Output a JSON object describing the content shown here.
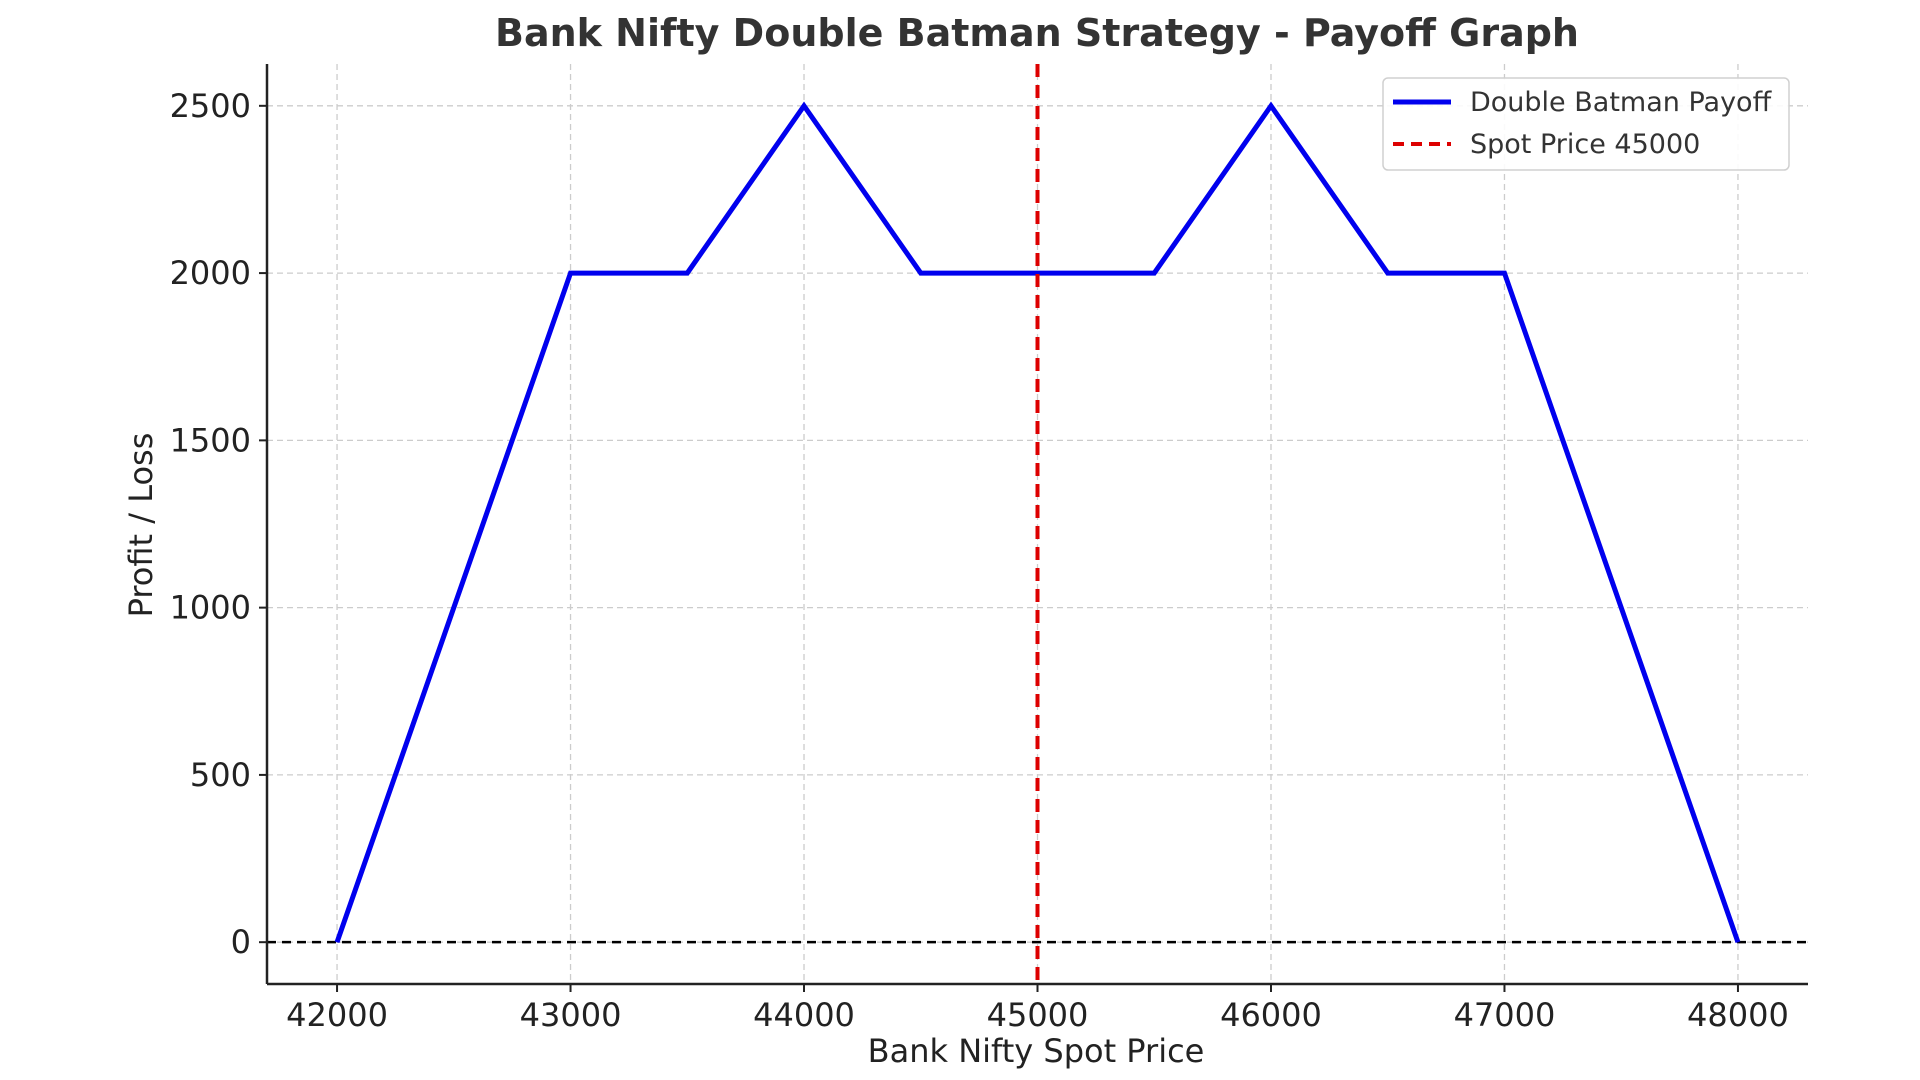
{
  "chart_data": {
    "type": "line",
    "title": "Bank Nifty Double Batman Strategy - Payoff Graph",
    "xlabel": "Bank Nifty Spot Price",
    "ylabel": "Profit / Loss",
    "xlim": [
      41700,
      48300
    ],
    "ylim": [
      -125,
      2625
    ],
    "xticks": [
      42000,
      43000,
      44000,
      45000,
      46000,
      47000,
      48000
    ],
    "yticks": [
      0,
      500,
      1000,
      1500,
      2000,
      2500
    ],
    "grid": true,
    "legend_position": "top-right",
    "series": [
      {
        "name": "Double Batman Payoff",
        "color": "#0000ee",
        "style": "solid",
        "x": [
          42000,
          43000,
          43500,
          44000,
          44500,
          45500,
          46000,
          46500,
          47000,
          48000
        ],
        "y": [
          0,
          2000,
          2000,
          2500,
          2000,
          2000,
          2500,
          2000,
          2000,
          0
        ]
      },
      {
        "name": "Spot Price 45000",
        "color": "#dd0000",
        "style": "dashed",
        "vline_x": 45000
      }
    ],
    "zero_line": {
      "y": 0,
      "color": "#000000",
      "style": "dashed"
    }
  }
}
